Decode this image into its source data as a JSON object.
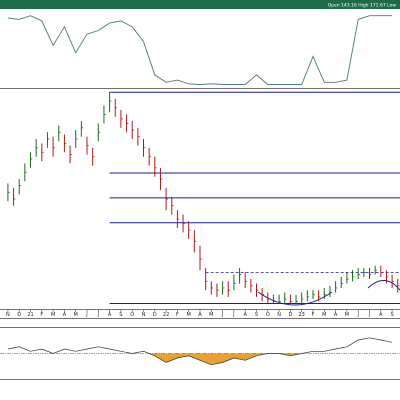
{
  "chart_data": [
    {
      "type": "line",
      "color": "#4a7a7a",
      "xlim": [
        -0.7,
        34.7
      ],
      "ylim": [
        0,
        100
      ],
      "x": [
        0,
        1,
        2,
        3,
        4,
        5,
        6,
        7,
        8,
        9,
        10,
        11,
        12,
        13,
        14,
        15,
        16,
        17,
        18,
        19,
        20,
        21,
        22,
        23,
        24,
        25,
        26,
        27,
        28,
        29,
        30,
        31,
        32,
        33,
        34
      ],
      "values": [
        92,
        90,
        95,
        88,
        55,
        80,
        45,
        70,
        75,
        85,
        88,
        80,
        60,
        15,
        5,
        8,
        3,
        2,
        3,
        2,
        2,
        2,
        15,
        2,
        2,
        2,
        2,
        40,
        5,
        5,
        8,
        90,
        95,
        95,
        95
      ]
    },
    {
      "type": "ohlc",
      "ohlc_readout": "Open 143.16  High 171.67  Low",
      "up_color": "#1a6a1a",
      "down_color": "#b01818",
      "xlim": [
        -0.7,
        34.7
      ],
      "ylim": [
        78,
        176
      ],
      "xticks": [
        {
          "value": 0,
          "label": "N"
        },
        {
          "value": 1,
          "label": "D"
        },
        {
          "value": 2,
          "label": "21"
        },
        {
          "value": 3,
          "label": "F"
        },
        {
          "value": 4,
          "label": "M"
        },
        {
          "value": 5,
          "label": "A"
        },
        {
          "value": 6,
          "label": "M"
        },
        {
          "value": 7,
          "label": "J"
        },
        {
          "value": 8,
          "label": "J"
        },
        {
          "value": 9,
          "label": "A"
        },
        {
          "value": 10,
          "label": "S"
        },
        {
          "value": 11,
          "label": "O"
        },
        {
          "value": 12,
          "label": "N"
        },
        {
          "value": 13,
          "label": "D"
        },
        {
          "value": 14,
          "label": "22"
        },
        {
          "value": 15,
          "label": "F"
        },
        {
          "value": 16,
          "label": "M"
        },
        {
          "value": 17,
          "label": "A"
        },
        {
          "value": 18,
          "label": "M"
        },
        {
          "value": 19,
          "label": "J"
        },
        {
          "value": 20,
          "label": "J"
        },
        {
          "value": 21,
          "label": "A"
        },
        {
          "value": 22,
          "label": "S"
        },
        {
          "value": 23,
          "label": "O"
        },
        {
          "value": 24,
          "label": "N"
        },
        {
          "value": 25,
          "label": "D"
        },
        {
          "value": 26,
          "label": "23"
        },
        {
          "value": 27,
          "label": "F"
        },
        {
          "value": 28,
          "label": "M"
        },
        {
          "value": 29,
          "label": "A"
        },
        {
          "value": 30,
          "label": "M"
        },
        {
          "value": 31,
          "label": "J"
        },
        {
          "value": 32,
          "label": "J"
        },
        {
          "value": 33,
          "label": "A"
        },
        {
          "value": 34,
          "label": "S"
        }
      ],
      "x": [
        0,
        0.5,
        1,
        1.5,
        2,
        2.5,
        3,
        3.5,
        4,
        4.5,
        5,
        5.5,
        6,
        6.5,
        7,
        7.5,
        8,
        8.5,
        9,
        9.5,
        10,
        10.5,
        11,
        11.5,
        12,
        12.5,
        13,
        13.5,
        14,
        14.5,
        15,
        15.5,
        16,
        16.5,
        17,
        17.5,
        18,
        18.5,
        19,
        19.5,
        20,
        20.5,
        21,
        21.5,
        22,
        22.5,
        23,
        23.5,
        24,
        24.5,
        25,
        25.5,
        26,
        26.5,
        27,
        27.5,
        28,
        28.5,
        29,
        29.5,
        30,
        30.5,
        31,
        31.5,
        32,
        32.5,
        33,
        33.5,
        34,
        34.5
      ],
      "high": [
        134,
        132,
        136,
        143,
        148,
        154,
        152,
        157,
        155,
        160,
        156,
        151,
        158,
        162,
        155,
        150,
        161,
        169,
        175,
        172,
        167,
        165,
        162,
        159,
        154,
        150,
        146,
        141,
        132,
        128,
        122,
        120,
        117,
        113,
        106,
        96,
        90,
        89,
        90,
        90,
        93,
        96,
        94,
        91,
        89,
        87,
        85,
        84,
        84,
        85,
        84,
        84,
        85,
        86,
        86,
        86,
        87,
        88,
        90,
        92,
        94,
        95,
        96,
        96,
        96,
        97,
        97,
        95,
        93,
        91
      ],
      "low": [
        126,
        124,
        129,
        135,
        141,
        146,
        144,
        150,
        146,
        153,
        148,
        143,
        150,
        155,
        147,
        142,
        153,
        161,
        166,
        164,
        159,
        157,
        154,
        151,
        146,
        142,
        137,
        131,
        122,
        120,
        114,
        112,
        109,
        103,
        95,
        86,
        84,
        83,
        84,
        83,
        86,
        89,
        87,
        85,
        83,
        81,
        80,
        80,
        80,
        80,
        80,
        80,
        80,
        81,
        82,
        81,
        82,
        83,
        85,
        87,
        89,
        90,
        91,
        92,
        91,
        93,
        92,
        89,
        87,
        85
      ],
      "close": [
        130,
        127,
        133,
        139,
        145,
        150,
        148,
        154,
        150,
        157,
        152,
        147,
        154,
        159,
        151,
        146,
        157,
        165,
        171,
        168,
        163,
        161,
        158,
        155,
        150,
        146,
        141,
        136,
        127,
        124,
        118,
        116,
        113,
        108,
        100,
        90,
        87,
        86,
        87,
        86,
        89,
        93,
        90,
        88,
        86,
        84,
        82,
        81,
        81,
        82,
        81,
        81,
        82,
        83,
        84,
        83,
        84,
        85,
        87,
        89,
        91,
        92,
        93,
        94,
        93,
        95,
        94,
        92,
        90,
        88
      ],
      "levels": [
        175,
        138.7,
        127.5,
        116.3,
        80
      ],
      "levels_start": 9,
      "level_color": "#1a1aa0",
      "resistance": 94,
      "resistance_start": 17.5
    },
    {
      "type": "area",
      "color": "#333",
      "neg_color": "#e8a030",
      "pos_color": "#3a8a6a",
      "xlim": [
        -0.7,
        34.7
      ],
      "ylim": [
        -1,
        1
      ],
      "x": [
        0,
        1,
        2,
        3,
        4,
        5,
        6,
        7,
        8,
        9,
        10,
        11,
        12,
        13,
        14,
        15,
        16,
        17,
        18,
        19,
        20,
        21,
        22,
        23,
        24,
        25,
        26,
        27,
        28,
        29,
        30,
        31,
        32,
        33,
        34
      ],
      "values": [
        0.2,
        0.3,
        0.1,
        0.2,
        0,
        0.2,
        0.1,
        0.2,
        0.3,
        0.2,
        0.1,
        0,
        0.1,
        -0.1,
        -0.4,
        -0.2,
        -0.1,
        -0.3,
        -0.5,
        -0.4,
        -0.2,
        -0.3,
        -0.1,
        0,
        0,
        -0.1,
        0,
        0.1,
        0.1,
        0.2,
        0.3,
        0.6,
        0.7,
        0.6,
        0.5
      ]
    }
  ]
}
